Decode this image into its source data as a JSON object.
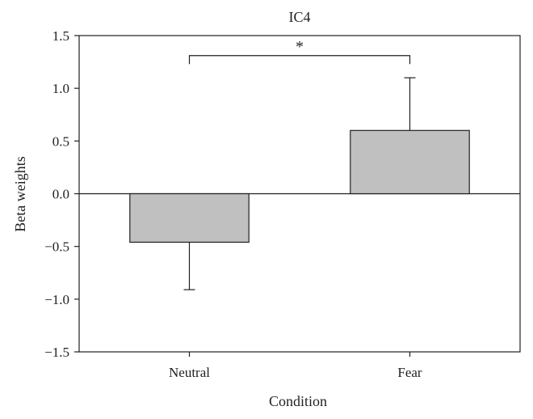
{
  "chart_data": {
    "type": "bar",
    "title": "IC4",
    "xlabel": "Condition",
    "ylabel": "Beta weights",
    "categories": [
      "Neutral",
      "Fear"
    ],
    "values": [
      -0.46,
      0.6
    ],
    "error_bars": [
      0.45,
      0.5
    ],
    "ylim": [
      -1.5,
      1.5
    ],
    "yticks": [
      -1.5,
      -1.0,
      -0.5,
      0.0,
      0.5,
      1.0,
      1.5
    ],
    "ytick_labels": [
      "−1.5",
      "−1.0",
      "−0.5",
      "0.0",
      "0.5",
      "1.0",
      "1.5"
    ],
    "significance": {
      "between": [
        "Neutral",
        "Fear"
      ],
      "label": "*"
    },
    "grid": false,
    "bar_color": "#c0c0c0",
    "line_color": "#231f20"
  }
}
